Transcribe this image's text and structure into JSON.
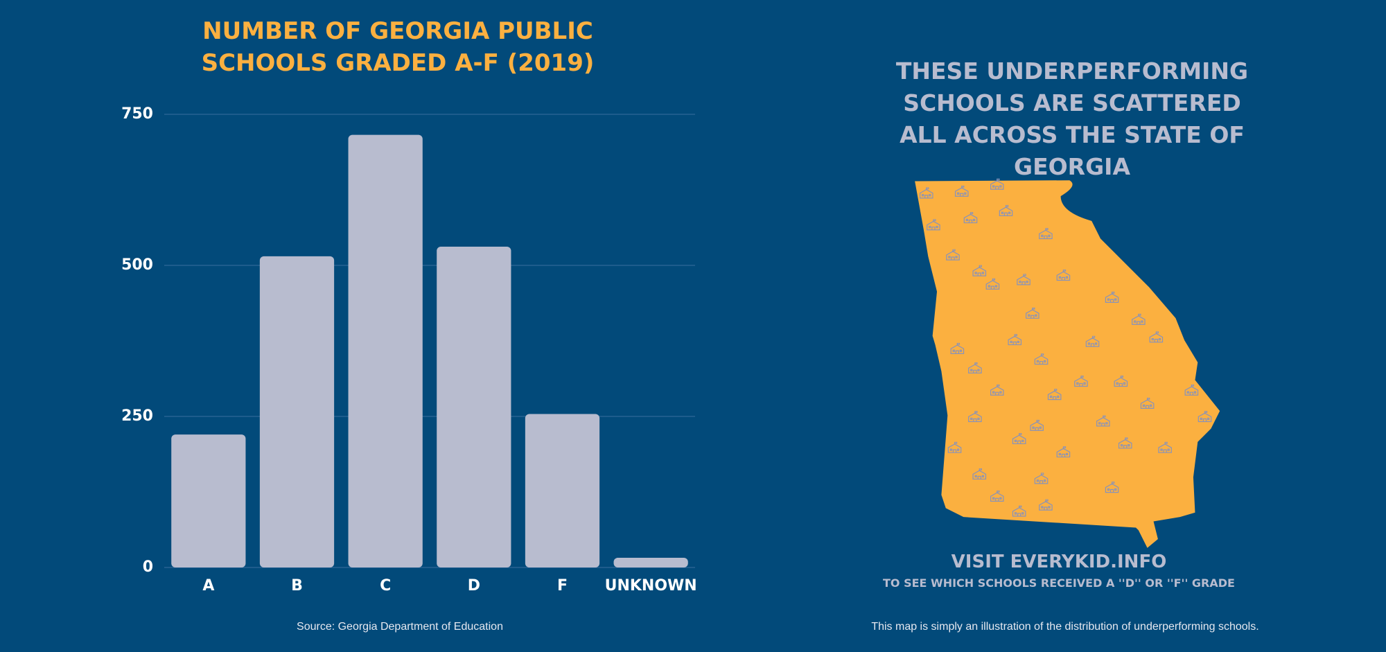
{
  "chart_data": {
    "type": "bar",
    "title": "NUMBER OF GEORGIA PUBLIC SCHOOLS GRADED A-F (2019)",
    "categories": [
      "A",
      "B",
      "C",
      "D",
      "F",
      "UNKNOWN"
    ],
    "values": [
      220,
      515,
      716,
      531,
      254,
      16
    ],
    "color": "#b8bccf",
    "ylim": [
      0,
      750
    ],
    "yticks": [
      0,
      250,
      500,
      750
    ],
    "grid": true,
    "source": "Source: Georgia Department of Education"
  },
  "map_panel": {
    "heading": "THESE UNDERPERFORMING SCHOOLS ARE SCATTERED ALL ACROSS THE STATE OF GEORGIA",
    "cta": "VISIT EVERYKID.INFO",
    "cta_subtitle": "TO SEE WHICH SCHOOLS RECEIVED A ''D'' OR ''F'' GRADE",
    "note": "This map is simply an illustration of the distribution of underperforming schools."
  }
}
